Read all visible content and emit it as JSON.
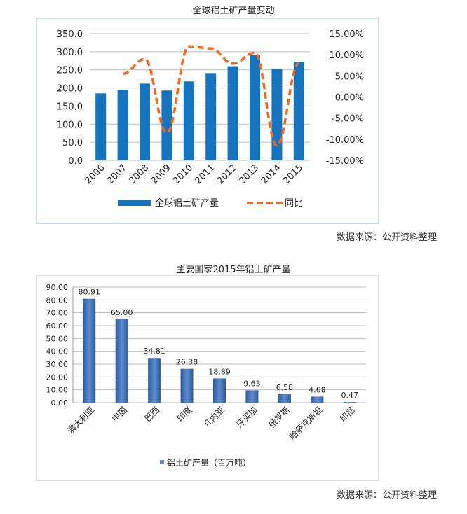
{
  "chart_data": [
    {
      "type": "bar+line",
      "title": "全球铝土矿产量变动",
      "categories": [
        "2006",
        "2007",
        "2008",
        "2009",
        "2010",
        "2011",
        "2012",
        "2013",
        "2014",
        "2015"
      ],
      "series": [
        {
          "name": "全球铝土矿产量",
          "kind": "bar",
          "axis": "left",
          "values": [
            185,
            195,
            212,
            193,
            218,
            241,
            260,
            290,
            252,
            272
          ]
        },
        {
          "name": "同比",
          "kind": "line",
          "axis": "right",
          "values": [
            null,
            5.5,
            9.0,
            -8.5,
            12.0,
            11.5,
            7.9,
            10.5,
            -11.5,
            8.0
          ]
        }
      ],
      "ylim_left": [
        0,
        350
      ],
      "yticks_left": [
        "0.0",
        "50.0",
        "100.0",
        "150.0",
        "200.0",
        "250.0",
        "300.0",
        "350.0"
      ],
      "ylim_right": [
        -15,
        15
      ],
      "yticks_right": [
        "-15.00%",
        "-10.00%",
        "-5.00%",
        "0.00%",
        "5.00%",
        "10.00%",
        "15.00%"
      ],
      "grid": true,
      "legend": "bottom",
      "source": "数据来源：公开资料整理"
    },
    {
      "type": "bar",
      "title": "主要国家2015年铝土矿产量",
      "categories": [
        "澳大利亚",
        "中国",
        "巴西",
        "印度",
        "几内亚",
        "牙买加",
        "俄罗斯",
        "哈萨克斯坦",
        "印尼"
      ],
      "series": [
        {
          "name": "铝土矿产量（百万吨）",
          "values": [
            80.91,
            65.0,
            34.81,
            26.38,
            18.89,
            9.63,
            6.58,
            4.68,
            0.47
          ]
        }
      ],
      "data_labels": [
        "80.91",
        "65.00",
        "34.81",
        "26.38",
        "18.89",
        "9.63",
        "6.58",
        "4.68",
        "0.47"
      ],
      "ylim": [
        0,
        90
      ],
      "yticks": [
        "0.00",
        "10.00",
        "20.00",
        "30.00",
        "40.00",
        "50.00",
        "60.00",
        "70.00",
        "80.00",
        "90.00"
      ],
      "grid": true,
      "legend": "bottom",
      "source": "数据来源：公开资料整理"
    }
  ],
  "colors": {
    "bar1": "#1673BE",
    "line1": "#ED6A21",
    "bar2_dark": "#2F5B9A",
    "bar2_light": "#5B8BD0",
    "grid": "#BDBDBD",
    "frame": "#9BB8CF"
  }
}
